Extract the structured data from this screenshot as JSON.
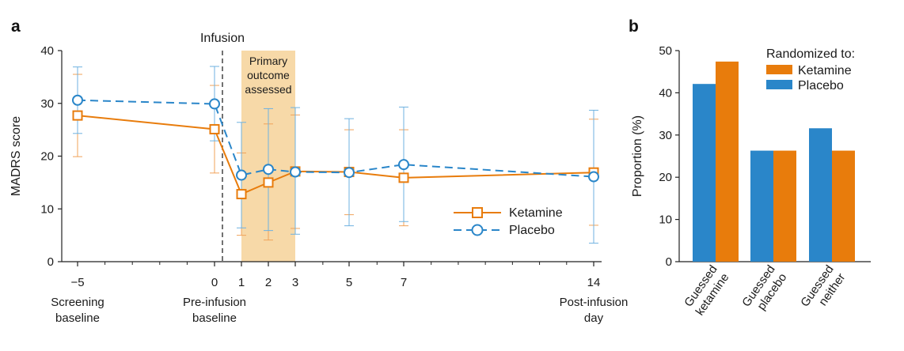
{
  "colors": {
    "ketamine": "#e87c0c",
    "placebo": "#2a86c9",
    "shade": "#f7d9a8",
    "axis": "#222222"
  },
  "chart_data": [
    {
      "panel_label": "a",
      "type": "line",
      "ylabel": "MADRS score",
      "ylim": [
        0,
        40
      ],
      "yticks": [
        0,
        10,
        20,
        30,
        40
      ],
      "x_ticks": [
        {
          "tick": "−5",
          "label_lines": [
            "Screening",
            "baseline"
          ]
        },
        {
          "tick": "0",
          "label_lines": [
            "Pre-infusion",
            "baseline"
          ]
        },
        {
          "tick": "1",
          "label_lines": []
        },
        {
          "tick": "2",
          "label_lines": []
        },
        {
          "tick": "3",
          "label_lines": []
        },
        {
          "tick": "5",
          "label_lines": []
        },
        {
          "tick": "7",
          "label_lines": []
        },
        {
          "tick": "14",
          "label_lines": [
            "Post-infusion",
            "day"
          ]
        }
      ],
      "infusion_label": "Infusion",
      "shade_label_lines": [
        "Primary",
        "outcome",
        "assessed"
      ],
      "shade_range_ticks": [
        1,
        3
      ],
      "legend": {
        "position": "lower-right"
      },
      "series": [
        {
          "name": "Ketamine",
          "marker": "square",
          "line": "solid",
          "values": [
            27.7,
            25.1,
            12.8,
            15.0,
            17.1,
            17.0,
            15.9,
            16.9
          ],
          "err_low": [
            19.9,
            16.8,
            5.0,
            4.1,
            6.3,
            8.9,
            6.8,
            6.9
          ],
          "err_high": [
            35.5,
            33.4,
            20.6,
            26.1,
            27.8,
            25.0,
            25.0,
            27.0
          ]
        },
        {
          "name": "Placebo",
          "marker": "circle",
          "line": "dashed",
          "values": [
            30.6,
            29.9,
            16.4,
            17.5,
            17.0,
            16.9,
            18.4,
            16.1
          ],
          "err_low": [
            24.3,
            22.9,
            6.4,
            5.9,
            5.2,
            6.8,
            7.6,
            3.5
          ],
          "err_high": [
            36.9,
            37.0,
            26.4,
            29.0,
            29.2,
            27.1,
            29.3,
            28.7
          ]
        }
      ]
    },
    {
      "panel_label": "b",
      "type": "bar",
      "ylabel": "Proportion (%)",
      "ylim": [
        0,
        50
      ],
      "yticks": [
        0,
        10,
        20,
        30,
        40,
        50
      ],
      "categories": [
        {
          "lines": [
            "Guessed",
            "ketamine"
          ]
        },
        {
          "lines": [
            "Guessed",
            "placebo"
          ]
        },
        {
          "lines": [
            "Guessed",
            "neither"
          ]
        }
      ],
      "legend_title": "Randomized to:",
      "legend": {
        "position": "top-right"
      },
      "series": [
        {
          "name": "Placebo",
          "values": [
            42.1,
            26.3,
            31.6
          ]
        },
        {
          "name": "Ketamine",
          "values": [
            47.4,
            26.3,
            26.3
          ]
        }
      ],
      "legend_order": [
        "Ketamine",
        "Placebo"
      ]
    }
  ]
}
